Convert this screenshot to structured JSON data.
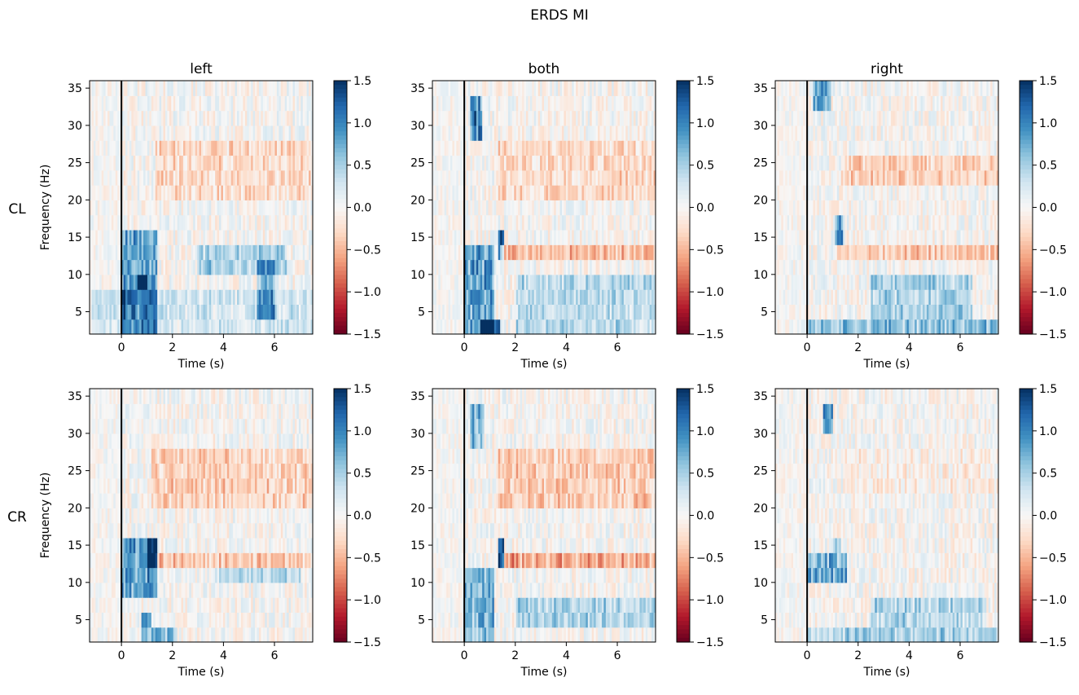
{
  "figure_title": "ERDS MI",
  "colors": {
    "vmin": "#67001f",
    "mid": "#f7f7f7",
    "vmax": "#053061",
    "axes": "#000000"
  },
  "chart_data": {
    "type": "heatmap",
    "title": "ERDS MI",
    "colormap": "RdBu",
    "color_range": [
      -1.5,
      1.5
    ],
    "colorbar_ticks": [
      1.5,
      1.0,
      0.5,
      0.0,
      -0.5,
      -1.0,
      -1.5
    ],
    "colorbar_tick_labels": [
      "1.5",
      "1.0",
      "0.5",
      "0.0",
      "−0.5",
      "−1.0",
      "−1.5"
    ],
    "xlabel": "Time (s)",
    "ylabel": "Frequency (Hz)",
    "xlim": [
      -1.25,
      7.5
    ],
    "ylim": [
      2,
      36
    ],
    "xticks": [
      0,
      2,
      4,
      6
    ],
    "xtick_labels": [
      "0",
      "2",
      "4",
      "6"
    ],
    "yticks": [
      35,
      30,
      25,
      20,
      15,
      10,
      5
    ],
    "ytick_labels": [
      "35",
      "30",
      "25",
      "20",
      "15",
      "10",
      "5"
    ],
    "event_marker_x": 0,
    "column_titles": [
      "left",
      "both",
      "right"
    ],
    "row_labels": [
      "CL",
      "CR"
    ],
    "panels": [
      {
        "row": "CL",
        "column": "left",
        "seed": 11,
        "features": [
          {
            "kind": "ers",
            "t": [
              0.0,
              1.4
            ],
            "f": [
              3,
              15
            ],
            "v": 0.95
          },
          {
            "kind": "ers",
            "t": [
              0.6,
              1.0
            ],
            "f": [
              8,
              10
            ],
            "v": 1.4
          },
          {
            "kind": "ers",
            "t": [
              3.0,
              6.5
            ],
            "f": [
              10.5,
              13
            ],
            "v": 0.55
          },
          {
            "kind": "ers",
            "t": [
              5.3,
              6.0
            ],
            "f": [
              4,
              11
            ],
            "v": 0.8
          },
          {
            "kind": "erd",
            "t": [
              1.3,
              7.5
            ],
            "f": [
              20,
              28
            ],
            "v": -0.32
          },
          {
            "kind": "ers",
            "t": [
              -1.2,
              7.5
            ],
            "f": [
              2,
              7
            ],
            "v": 0.3
          }
        ]
      },
      {
        "row": "CL",
        "column": "both",
        "seed": 23,
        "features": [
          {
            "kind": "ers",
            "t": [
              0.0,
              1.2
            ],
            "f": [
              2,
              14
            ],
            "v": 0.95
          },
          {
            "kind": "ers",
            "t": [
              0.6,
              1.4
            ],
            "f": [
              2,
              4
            ],
            "v": 1.45
          },
          {
            "kind": "ers",
            "t": [
              0.2,
              0.7
            ],
            "f": [
              29,
              33
            ],
            "v": 1.2
          },
          {
            "kind": "ers",
            "t": [
              1.3,
              1.6
            ],
            "f": [
              13,
              16
            ],
            "v": 1.3
          },
          {
            "kind": "erd",
            "t": [
              1.4,
              7.5
            ],
            "f": [
              12,
              14
            ],
            "v": -0.55
          },
          {
            "kind": "erd",
            "t": [
              1.3,
              7.5
            ],
            "f": [
              20,
              28
            ],
            "v": -0.32
          },
          {
            "kind": "ers",
            "t": [
              2.0,
              7.5
            ],
            "f": [
              3,
              10
            ],
            "v": 0.45
          }
        ]
      },
      {
        "row": "CL",
        "column": "right",
        "seed": 37,
        "features": [
          {
            "kind": "ers",
            "t": [
              0.2,
              0.9
            ],
            "f": [
              32,
              35
            ],
            "v": 0.95
          },
          {
            "kind": "ers",
            "t": [
              1.1,
              1.4
            ],
            "f": [
              14,
              17
            ],
            "v": 1.15
          },
          {
            "kind": "erd",
            "t": [
              1.2,
              7.5
            ],
            "f": [
              12,
              14
            ],
            "v": -0.45
          },
          {
            "kind": "erd",
            "t": [
              1.3,
              7.5
            ],
            "f": [
              22,
              25
            ],
            "v": -0.38
          },
          {
            "kind": "ers",
            "t": [
              0.0,
              7.5
            ],
            "f": [
              2,
              4
            ],
            "v": 0.7
          },
          {
            "kind": "ers",
            "t": [
              2.5,
              6.5
            ],
            "f": [
              5,
              9
            ],
            "v": 0.55
          }
        ]
      },
      {
        "row": "CR",
        "column": "left",
        "seed": 41,
        "features": [
          {
            "kind": "ers",
            "t": [
              0.0,
              1.4
            ],
            "f": [
              8,
              15
            ],
            "v": 0.95
          },
          {
            "kind": "ers",
            "t": [
              1.0,
              1.4
            ],
            "f": [
              13,
              16
            ],
            "v": 1.2
          },
          {
            "kind": "ers",
            "t": [
              0.8,
              1.2
            ],
            "f": [
              4,
              6
            ],
            "v": 1.2
          },
          {
            "kind": "ers",
            "t": [
              0.8,
              2.2
            ],
            "f": [
              2,
              4
            ],
            "v": 0.75
          },
          {
            "kind": "erd",
            "t": [
              1.3,
              7.5
            ],
            "f": [
              12,
              14
            ],
            "v": -0.45
          },
          {
            "kind": "erd",
            "t": [
              1.2,
              7.5
            ],
            "f": [
              21,
              28
            ],
            "v": -0.38
          },
          {
            "kind": "ers",
            "t": [
              3.5,
              7.0
            ],
            "f": [
              10,
              12
            ],
            "v": 0.4
          }
        ]
      },
      {
        "row": "CR",
        "column": "both",
        "seed": 53,
        "features": [
          {
            "kind": "ers",
            "t": [
              0.0,
              1.2
            ],
            "f": [
              2,
              12
            ],
            "v": 0.8
          },
          {
            "kind": "ers",
            "t": [
              1.3,
              1.6
            ],
            "f": [
              13,
              16
            ],
            "v": 1.45
          },
          {
            "kind": "erd",
            "t": [
              1.5,
              7.5
            ],
            "f": [
              12,
              14
            ],
            "v": -0.65
          },
          {
            "kind": "erd",
            "t": [
              1.3,
              7.5
            ],
            "f": [
              21,
              28
            ],
            "v": -0.42
          },
          {
            "kind": "ers",
            "t": [
              0.2,
              0.8
            ],
            "f": [
              29,
              34
            ],
            "v": 0.8
          },
          {
            "kind": "ers",
            "t": [
              2.0,
              7.5
            ],
            "f": [
              4,
              8
            ],
            "v": 0.55
          }
        ]
      },
      {
        "row": "CR",
        "column": "right",
        "seed": 67,
        "features": [
          {
            "kind": "ers",
            "t": [
              0.0,
              1.6
            ],
            "f": [
              11,
              14
            ],
            "v": 0.85
          },
          {
            "kind": "ers",
            "t": [
              0.6,
              1.0
            ],
            "f": [
              31,
              34
            ],
            "v": 0.9
          },
          {
            "kind": "ers",
            "t": [
              1.0,
              1.3
            ],
            "f": [
              14,
              16
            ],
            "v": 0.8
          },
          {
            "kind": "ers",
            "t": [
              0.0,
              7.5
            ],
            "f": [
              2,
              4
            ],
            "v": 0.55
          },
          {
            "kind": "ers",
            "t": [
              2.5,
              7.0
            ],
            "f": [
              5,
              7
            ],
            "v": 0.5
          },
          {
            "kind": "erd",
            "t": [
              1.5,
              7.5
            ],
            "f": [
              22,
              28
            ],
            "v": -0.12
          }
        ]
      }
    ]
  }
}
